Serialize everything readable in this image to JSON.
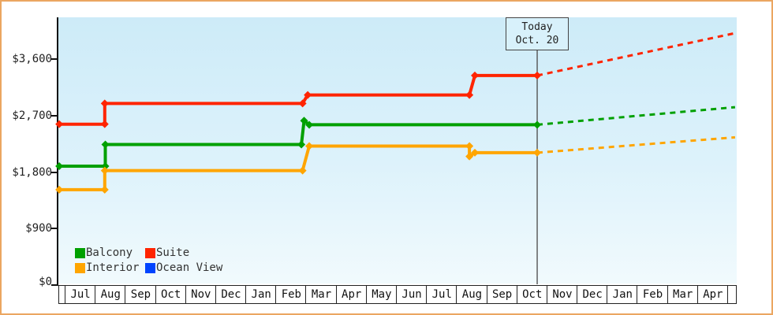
{
  "today_box": {
    "line1": "Today",
    "line2": "Oct. 20"
  },
  "colors": {
    "balcony": "#00a000",
    "suite": "#ff2400",
    "interior": "#ffa500",
    "ocean_view": "#0044ff",
    "axis": "#111111",
    "today_line": "#555555"
  },
  "legend": {
    "items": [
      {
        "label": "Balcony",
        "color": "#00a000"
      },
      {
        "label": "Suite",
        "color": "#ff2400"
      },
      {
        "label": "Interior",
        "color": "#ffa500"
      },
      {
        "label": "Ocean View",
        "color": "#0044ff"
      }
    ]
  },
  "chart_data": {
    "type": "line",
    "title": "",
    "xlabel": "",
    "ylabel": "",
    "x_tick_labels": [
      "Jul",
      "Aug",
      "Sep",
      "Oct",
      "Nov",
      "Dec",
      "Jan",
      "Feb",
      "Mar",
      "Apr",
      "May",
      "Jun",
      "Jul",
      "Aug",
      "Sep",
      "Oct",
      "Nov",
      "Dec",
      "Jan",
      "Feb",
      "Mar",
      "Apr"
    ],
    "y_ticks": [
      {
        "label": "$0",
        "value": 0
      },
      {
        "label": "$900",
        "value": 900
      },
      {
        "label": "$1,800",
        "value": 1800
      },
      {
        "label": "$2,700",
        "value": 2700
      },
      {
        "label": "$3,600",
        "value": 3600
      }
    ],
    "ylim": [
      0,
      4260
    ],
    "grid": false,
    "legend_position": "bottom-left",
    "today_month_index": 15.69,
    "note": "x unit = months since first Jul tick; step lines; dashed = forecast after today",
    "series": [
      {
        "name": "Suite",
        "color": "#ff2400",
        "points": [
          [
            -0.18,
            2565
          ],
          [
            1.33,
            2565
          ],
          [
            1.33,
            2895
          ],
          [
            7.9,
            2895
          ],
          [
            8.07,
            3030
          ],
          [
            13.44,
            3030
          ],
          [
            13.62,
            3340
          ],
          [
            15.69,
            3340
          ]
        ],
        "projection": [
          [
            15.69,
            3340
          ],
          [
            22.26,
            4015
          ]
        ]
      },
      {
        "name": "Balcony",
        "color": "#00a000",
        "points": [
          [
            -0.18,
            1895
          ],
          [
            1.35,
            1895
          ],
          [
            1.35,
            2240
          ],
          [
            7.86,
            2240
          ],
          [
            7.95,
            2620
          ],
          [
            8.12,
            2555
          ],
          [
            15.69,
            2555
          ]
        ],
        "projection": [
          [
            15.69,
            2555
          ],
          [
            22.26,
            2835
          ]
        ]
      },
      {
        "name": "Interior",
        "color": "#ffa500",
        "points": [
          [
            -0.18,
            1520
          ],
          [
            1.33,
            1520
          ],
          [
            1.33,
            1825
          ],
          [
            7.9,
            1825
          ],
          [
            8.12,
            2215
          ],
          [
            13.44,
            2215
          ],
          [
            13.44,
            2050
          ],
          [
            13.62,
            2110
          ],
          [
            15.69,
            2110
          ]
        ],
        "projection": [
          [
            15.69,
            2110
          ],
          [
            22.26,
            2355
          ]
        ]
      },
      {
        "name": "Ocean View",
        "color": "#0044ff",
        "points": [],
        "projection": []
      }
    ]
  }
}
